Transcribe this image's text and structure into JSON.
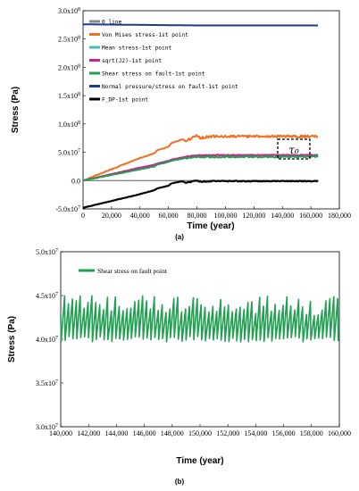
{
  "chart_data": [
    {
      "type": "line",
      "panel_label": "(a)",
      "xlabel": "Time (year)",
      "ylabel": "Stress (Pa)",
      "xlim": [
        0,
        180000
      ],
      "ylim": [
        -50000000,
        300000000
      ],
      "x_ticks": [
        "0",
        "20,000",
        "40,000",
        "60,000",
        "80,000",
        "100,000",
        "120,000",
        "140,000",
        "160,000",
        "180,000"
      ],
      "y_ticks": [
        "-5.0x10^7",
        "0.0",
        "5.0x10^7",
        "1.0x10^8",
        "1.5x10^8",
        "2.0x10^8",
        "2.5x10^8",
        "3.0x10^8"
      ],
      "legend_position": "top-left",
      "annotation": "τ₀",
      "colors": {
        "zero_line": "#888888",
        "von_mises": "#f07020",
        "mean_stress": "#40c0b8",
        "sqrt_j2": "#d02090",
        "shear": "#20a050",
        "normal_pressure": "#203a90",
        "f_dp": "#000000"
      },
      "series": [
        {
          "name": "0 line",
          "color_key": "zero_line",
          "x": [
            0,
            165000
          ],
          "y": [
            0,
            0
          ]
        },
        {
          "name": "Von Mises stress-1st point",
          "color_key": "von_mises",
          "noise": 2000000,
          "x": [
            0,
            20000,
            40000,
            50000,
            52000,
            60000,
            62000,
            70000,
            72000,
            80000,
            82000,
            90000,
            100000,
            120000,
            140000,
            165000
          ],
          "y": [
            0,
            20000000,
            40000000,
            48000000,
            53000000,
            60000000,
            66000000,
            73000000,
            70000000,
            79000000,
            75000000,
            78000000,
            78000000,
            78000000,
            78000000,
            78000000
          ]
        },
        {
          "name": "Mean stress-1st point",
          "color_key": "mean_stress",
          "noise": 800000,
          "x": [
            0,
            20000,
            40000,
            50000,
            52000,
            60000,
            62000,
            72000,
            80000,
            90000,
            165000
          ],
          "y": [
            0,
            11000000,
            22000000,
            27000000,
            29000000,
            34000000,
            36000000,
            41000000,
            44000000,
            45000000,
            45000000
          ]
        },
        {
          "name": "sqrt(J2)-1st point",
          "color_key": "sqrt_j2",
          "noise": 800000,
          "x": [
            0,
            20000,
            40000,
            50000,
            52000,
            60000,
            62000,
            72000,
            80000,
            90000,
            165000
          ],
          "y": [
            0,
            11500000,
            23000000,
            28000000,
            30000000,
            35000000,
            37000000,
            42000000,
            44500000,
            45000000,
            45000000
          ]
        },
        {
          "name": "Shear stress on fault-1st point",
          "color_key": "shear",
          "noise": 1500000,
          "x": [
            0,
            20000,
            40000,
            50000,
            52000,
            60000,
            62000,
            72000,
            80000,
            90000,
            165000
          ],
          "y": [
            0,
            10000000,
            20000000,
            25000000,
            28000000,
            33000000,
            35000000,
            40000000,
            42000000,
            42000000,
            42000000
          ]
        },
        {
          "name": "Normal pressure/stress on fault-1st point",
          "color_key": "normal_pressure",
          "noise": 0,
          "x": [
            0,
            80000,
            165000
          ],
          "y": [
            276000000,
            274000000,
            274000000
          ]
        },
        {
          "name": "F_DP-1st point",
          "color_key": "f_dp",
          "noise": 800000,
          "x": [
            0,
            20000,
            40000,
            50000,
            52000,
            60000,
            62000,
            70000,
            72000,
            80000,
            82000,
            90000,
            165000
          ],
          "y": [
            -48000000,
            -36000000,
            -24000000,
            -17000000,
            -14000000,
            -9000000,
            -5000000,
            -1000000,
            -4000000,
            0,
            -2000000,
            -1000000,
            -1000000
          ]
        }
      ]
    },
    {
      "type": "line",
      "panel_label": "(b)",
      "xlabel": "Time (year)",
      "ylabel": "Stress (Pa)",
      "xlim": [
        140000,
        160000
      ],
      "ylim": [
        30000000,
        50000000
      ],
      "x_ticks": [
        "140,000",
        "142,000",
        "144,000",
        "146,000",
        "148,000",
        "150,000",
        "152,000",
        "154,000",
        "156,000",
        "158,000",
        "160,000"
      ],
      "y_ticks": [
        "3.0x10^7",
        "3.5x10^7",
        "4.0x10^7",
        "4.5x10^7",
        "5.0x10^7"
      ],
      "legend_position": "top-left",
      "colors": {
        "shear": "#20a050"
      },
      "series": [
        {
          "name": "Shear stress on fault point",
          "color_key": "shear",
          "pattern": "sawtooth",
          "period": 280,
          "baseline": 40000000,
          "peak_mean": 43800000,
          "peak_range": [
            42700000,
            45000000
          ]
        }
      ]
    }
  ]
}
